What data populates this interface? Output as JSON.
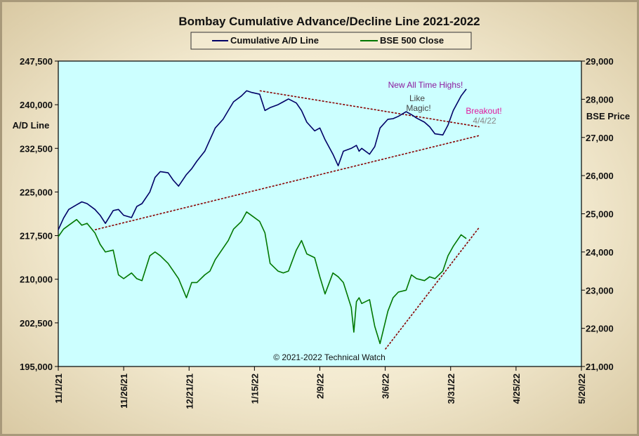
{
  "chart_data": {
    "type": "line",
    "title": "Bombay Cumulative Advance/Decline Line 2021-2022",
    "ylabel": "A/D Line",
    "y2label": "BSE Price",
    "copyright": "© 2021-2022  Technical  Watch",
    "x_tick_labels": [
      "11/1/21",
      "11/26/21",
      "12/21/21",
      "1/15/22",
      "2/9/22",
      "3/6/22",
      "3/31/22",
      "4/25/22",
      "5/20/22"
    ],
    "xlim": [
      "2021-11-01",
      "2022-05-20"
    ],
    "y_tick_labels": [
      "247,500",
      "240,000",
      "232,500",
      "225,000",
      "217,500",
      "210,000",
      "202,500",
      "195,000"
    ],
    "ylim": [
      195000,
      247500
    ],
    "y2_tick_labels": [
      "29,000",
      "28,000",
      "27,000",
      "26,000",
      "25,000",
      "24,000",
      "23,000",
      "22,000",
      "21,000"
    ],
    "y2lim": [
      21000,
      29000
    ],
    "grid": false,
    "legend": "top-center",
    "colors": {
      "plot_bg": "#ccffff",
      "ad_line": "#000066",
      "bse_line": "#007700",
      "trend": "#880000"
    },
    "series": [
      {
        "name": "Cumulative A/D Line",
        "axis": "left",
        "x": [
          "2021-11-01",
          "2021-11-03",
          "2021-11-05",
          "2021-11-08",
          "2021-11-10",
          "2021-11-12",
          "2021-11-15",
          "2021-11-17",
          "2021-11-19",
          "2021-11-22",
          "2021-11-24",
          "2021-11-26",
          "2021-11-29",
          "2021-12-01",
          "2021-12-03",
          "2021-12-06",
          "2021-12-08",
          "2021-12-10",
          "2021-12-13",
          "2021-12-15",
          "2021-12-17",
          "2021-12-20",
          "2021-12-22",
          "2021-12-24",
          "2021-12-27",
          "2021-12-29",
          "2021-12-31",
          "2022-01-03",
          "2022-01-05",
          "2022-01-07",
          "2022-01-10",
          "2022-01-12",
          "2022-01-14",
          "2022-01-17",
          "2022-01-19",
          "2022-01-21",
          "2022-01-24",
          "2022-01-26",
          "2022-01-28",
          "2022-01-31",
          "2022-02-02",
          "2022-02-04",
          "2022-02-07",
          "2022-02-09",
          "2022-02-11",
          "2022-02-14",
          "2022-02-16",
          "2022-02-18",
          "2022-02-21",
          "2022-02-23",
          "2022-02-24",
          "2022-02-25",
          "2022-02-28",
          "2022-03-02",
          "2022-03-04",
          "2022-03-07",
          "2022-03-09",
          "2022-03-11",
          "2022-03-14",
          "2022-03-16",
          "2022-03-18",
          "2022-03-21",
          "2022-03-23",
          "2022-03-25",
          "2022-03-28",
          "2022-03-30",
          "2022-04-01",
          "2022-04-04",
          "2022-04-06"
        ],
        "values": [
          218500,
          220500,
          222000,
          222800,
          223300,
          223000,
          222000,
          221000,
          219600,
          221800,
          222000,
          221000,
          220600,
          222500,
          223000,
          225000,
          227500,
          228500,
          228300,
          227000,
          226000,
          228000,
          229000,
          230300,
          232000,
          234000,
          236000,
          237500,
          239000,
          240500,
          241500,
          242400,
          242100,
          241800,
          239000,
          239500,
          240000,
          240500,
          241000,
          240300,
          239000,
          237000,
          235500,
          236000,
          234000,
          231500,
          229500,
          232000,
          232500,
          233000,
          232000,
          232500,
          231500,
          232800,
          236000,
          237500,
          237600,
          238000,
          238800,
          238300,
          237700,
          237000,
          236200,
          235000,
          234800,
          236500,
          239000,
          241500,
          242700
        ]
      },
      {
        "name": "BSE 500 Close",
        "axis": "right",
        "x": [
          "2021-11-01",
          "2021-11-03",
          "2021-11-05",
          "2021-11-08",
          "2021-11-10",
          "2021-11-12",
          "2021-11-15",
          "2021-11-17",
          "2021-11-19",
          "2021-11-22",
          "2021-11-24",
          "2021-11-26",
          "2021-11-29",
          "2021-12-01",
          "2021-12-03",
          "2021-12-06",
          "2021-12-08",
          "2021-12-10",
          "2021-12-13",
          "2021-12-15",
          "2021-12-17",
          "2021-12-20",
          "2021-12-22",
          "2021-12-24",
          "2021-12-27",
          "2021-12-29",
          "2021-12-31",
          "2022-01-03",
          "2022-01-05",
          "2022-01-07",
          "2022-01-10",
          "2022-01-12",
          "2022-01-14",
          "2022-01-17",
          "2022-01-19",
          "2022-01-21",
          "2022-01-24",
          "2022-01-26",
          "2022-01-28",
          "2022-01-31",
          "2022-02-02",
          "2022-02-04",
          "2022-02-07",
          "2022-02-09",
          "2022-02-11",
          "2022-02-14",
          "2022-02-16",
          "2022-02-18",
          "2022-02-21",
          "2022-02-22",
          "2022-02-23",
          "2022-02-24",
          "2022-02-25",
          "2022-02-28",
          "2022-03-02",
          "2022-03-04",
          "2022-03-07",
          "2022-03-09",
          "2022-03-11",
          "2022-03-14",
          "2022-03-16",
          "2022-03-18",
          "2022-03-21",
          "2022-03-23",
          "2022-03-25",
          "2022-03-28",
          "2022-03-30",
          "2022-04-01",
          "2022-04-04",
          "2022-04-06"
        ],
        "values": [
          24400,
          24600,
          24700,
          24850,
          24700,
          24750,
          24500,
          24200,
          24000,
          24050,
          23400,
          23300,
          23450,
          23300,
          23250,
          23900,
          24000,
          23900,
          23700,
          23500,
          23300,
          22800,
          23200,
          23200,
          23400,
          23500,
          23800,
          24100,
          24300,
          24600,
          24800,
          25050,
          24950,
          24800,
          24500,
          23700,
          23500,
          23450,
          23500,
          24050,
          24300,
          23950,
          23850,
          23350,
          22900,
          23450,
          23350,
          23200,
          22550,
          21900,
          22700,
          22800,
          22650,
          22750,
          22050,
          21600,
          22450,
          22800,
          22950,
          23000,
          23400,
          23300,
          23250,
          23350,
          23300,
          23500,
          23900,
          24150,
          24450,
          24350
        ]
      }
    ],
    "trendlines": [
      {
        "from": [
          "2021-11-15",
          218500
        ],
        "to": [
          "2022-04-11",
          234700
        ],
        "axis": "left"
      },
      {
        "from": [
          "2022-01-17",
          242400
        ],
        "to": [
          "2022-04-11",
          236200
        ],
        "axis": "left"
      },
      {
        "from": [
          "2022-03-06",
          21450
        ],
        "to": [
          "2022-04-11",
          24650
        ],
        "axis": "right"
      }
    ],
    "annotations": [
      {
        "text": "New  All Time Highs!",
        "color": "#8b1a9e"
      },
      {
        "text": "Like",
        "color": "#444444"
      },
      {
        "text": "Magic!",
        "color": "#444444"
      },
      {
        "text": "Breakout!",
        "color": "#e0189c"
      },
      {
        "text": "4/4/22",
        "color": "#888888"
      }
    ]
  }
}
